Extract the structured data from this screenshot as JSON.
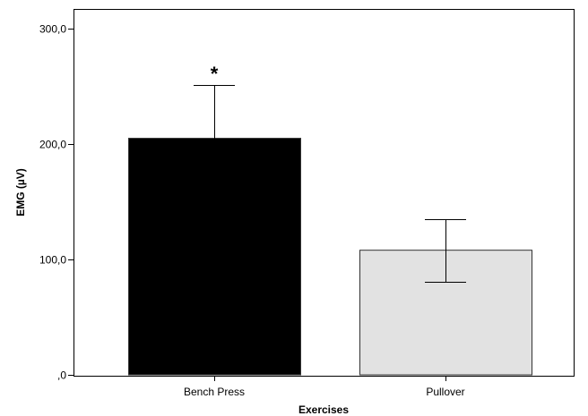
{
  "chart_data": {
    "type": "bar",
    "title": "",
    "xlabel": "Exercises",
    "ylabel": "EMG (µV)",
    "ylim": [
      0,
      300
    ],
    "y_ticks": [
      {
        "value": 0,
        "label": ",0"
      },
      {
        "value": 100,
        "label": "100,0"
      },
      {
        "value": 200,
        "label": "200,0"
      },
      {
        "value": 300,
        "label": "300,0"
      }
    ],
    "categories": [
      "Bench Press",
      "Pullover"
    ],
    "values": [
      205,
      108
    ],
    "error_bars": [
      {
        "low": 152,
        "high": 251
      },
      {
        "low": 81,
        "high": 135
      }
    ],
    "bar_colors": [
      "#000000",
      "#e2e2e2"
    ],
    "annotations": [
      {
        "category": "Bench Press",
        "text": "*"
      }
    ],
    "grid": false,
    "legend": "none"
  }
}
